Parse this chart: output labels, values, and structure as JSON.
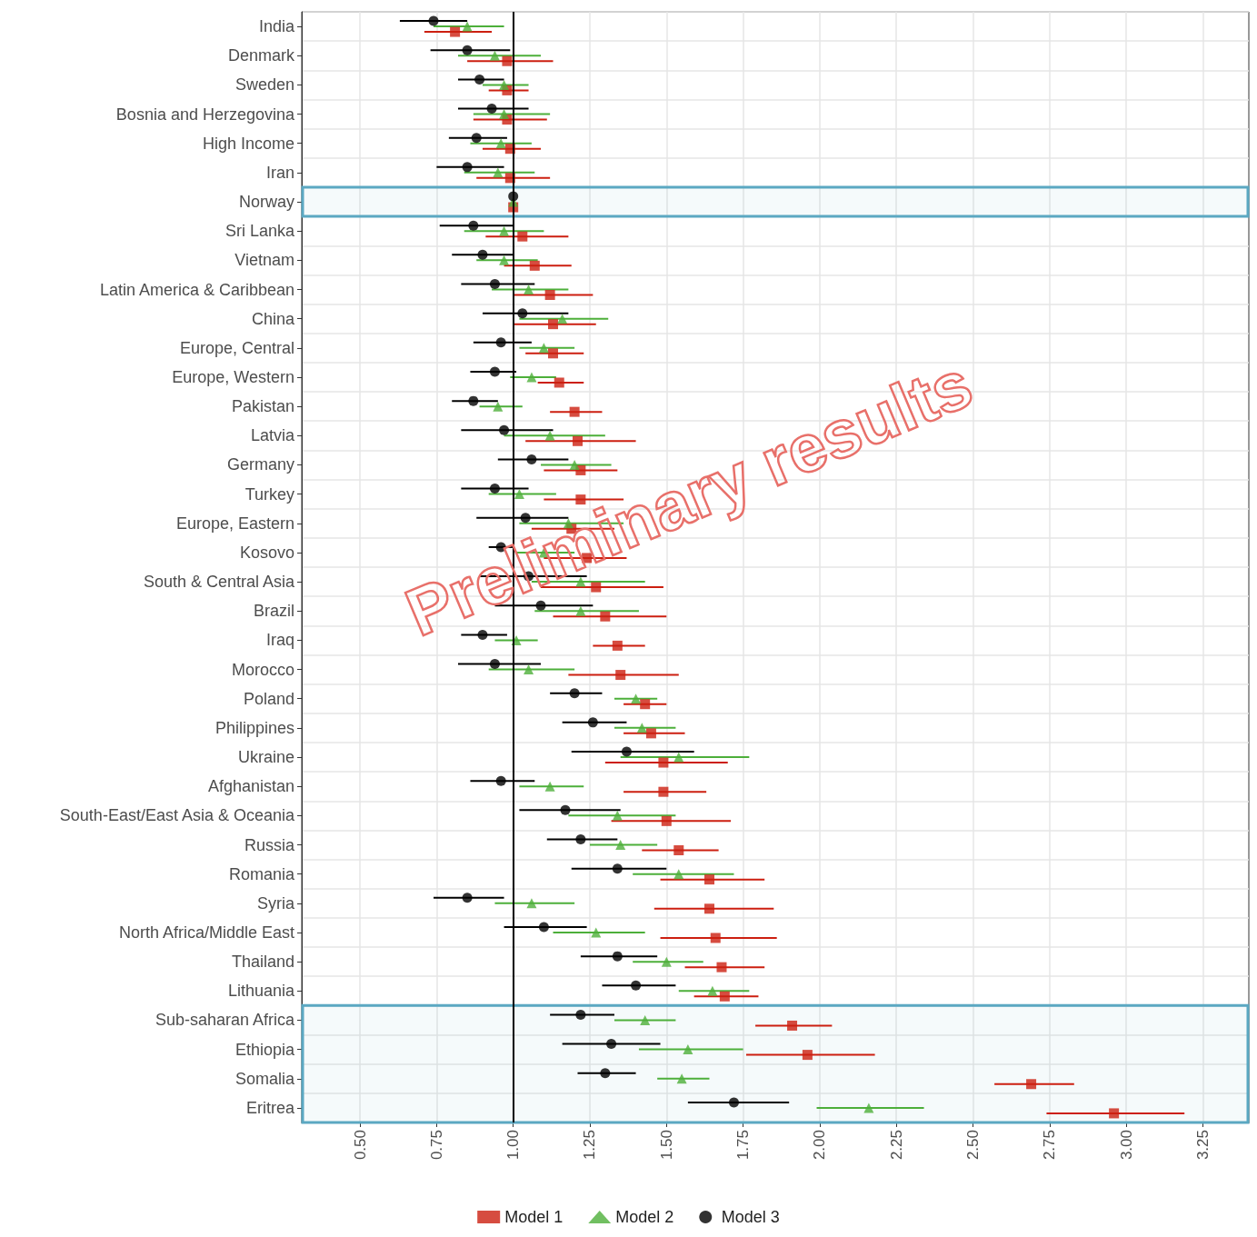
{
  "chart_data": {
    "type": "scatter",
    "orientation": "horizontal",
    "categories": [
      "India",
      "Denmark",
      "Sweden",
      "Bosnia and Herzegovina",
      "High Income",
      "Iran",
      "Norway",
      "Sri Lanka",
      "Vietnam",
      "Latin America & Caribbean",
      "China",
      "Europe, Central",
      "Europe, Western",
      "Pakistan",
      "Latvia",
      "Germany",
      "Turkey",
      "Europe, Eastern",
      "Kosovo",
      "South & Central Asia",
      "Brazil",
      "Iraq",
      "Morocco",
      "Poland",
      "Philippines",
      "Ukraine",
      "Afghanistan",
      "South-East/East Asia & Oceania",
      "Russia",
      "Romania",
      "Syria",
      "North Africa/Middle East",
      "Thailand",
      "Lithuania",
      "Sub-saharan Africa",
      "Ethiopia",
      "Somalia",
      "Eritrea"
    ],
    "series": [
      {
        "name": "Model 1",
        "color": "#cc1f10",
        "marker": "square",
        "values": [
          0.81,
          0.98,
          0.98,
          0.98,
          0.99,
          0.99,
          1.0,
          1.03,
          1.07,
          1.12,
          1.13,
          1.13,
          1.15,
          1.2,
          1.21,
          1.22,
          1.22,
          1.19,
          1.24,
          1.27,
          1.3,
          1.34,
          1.35,
          1.43,
          1.45,
          1.49,
          1.49,
          1.5,
          1.54,
          1.64,
          1.64,
          1.66,
          1.68,
          1.69,
          1.91,
          1.96,
          2.69,
          2.96
        ],
        "errors": [
          [
            0.71,
            0.93
          ],
          [
            0.85,
            1.13
          ],
          [
            0.92,
            1.05
          ],
          [
            0.87,
            1.11
          ],
          [
            0.9,
            1.09
          ],
          [
            0.88,
            1.12
          ],
          null,
          [
            0.91,
            1.18
          ],
          [
            0.97,
            1.19
          ],
          [
            1.0,
            1.26
          ],
          [
            1.0,
            1.27
          ],
          [
            1.04,
            1.23
          ],
          [
            1.08,
            1.23
          ],
          [
            1.12,
            1.29
          ],
          [
            1.04,
            1.4
          ],
          [
            1.1,
            1.34
          ],
          [
            1.1,
            1.36
          ],
          [
            1.06,
            1.33
          ],
          [
            1.1,
            1.37
          ],
          [
            1.09,
            1.49
          ],
          [
            1.13,
            1.5
          ],
          [
            1.26,
            1.43
          ],
          [
            1.18,
            1.54
          ],
          [
            1.36,
            1.5
          ],
          [
            1.36,
            1.56
          ],
          [
            1.3,
            1.7
          ],
          [
            1.36,
            1.63
          ],
          [
            1.32,
            1.71
          ],
          [
            1.42,
            1.67
          ],
          [
            1.48,
            1.82
          ],
          [
            1.46,
            1.85
          ],
          [
            1.48,
            1.86
          ],
          [
            1.56,
            1.82
          ],
          [
            1.59,
            1.8
          ],
          [
            1.79,
            2.04
          ],
          [
            1.76,
            2.18
          ],
          [
            2.57,
            2.83
          ],
          [
            2.74,
            3.19
          ]
        ]
      },
      {
        "name": "Model 2",
        "color": "#4daf3a",
        "marker": "triangle",
        "values": [
          0.85,
          0.94,
          0.97,
          0.97,
          0.96,
          0.95,
          1.0,
          0.97,
          0.97,
          1.05,
          1.16,
          1.1,
          1.06,
          0.95,
          1.12,
          1.2,
          1.02,
          1.18,
          1.1,
          1.22,
          1.22,
          1.01,
          1.05,
          1.4,
          1.42,
          1.54,
          1.12,
          1.34,
          1.35,
          1.54,
          1.06,
          1.27,
          1.5,
          1.65,
          1.43,
          1.57,
          1.55,
          2.16
        ],
        "errors": [
          [
            0.74,
            0.97
          ],
          [
            0.82,
            1.09
          ],
          [
            0.9,
            1.05
          ],
          [
            0.87,
            1.12
          ],
          [
            0.86,
            1.06
          ],
          [
            0.84,
            1.07
          ],
          null,
          [
            0.84,
            1.1
          ],
          [
            0.88,
            1.08
          ],
          [
            0.93,
            1.18
          ],
          [
            1.02,
            1.31
          ],
          [
            1.02,
            1.2
          ],
          [
            0.99,
            1.14
          ],
          [
            0.89,
            1.03
          ],
          [
            0.97,
            1.3
          ],
          [
            1.09,
            1.32
          ],
          [
            0.92,
            1.14
          ],
          [
            1.02,
            1.36
          ],
          [
            1.01,
            1.2
          ],
          [
            1.06,
            1.43
          ],
          [
            1.07,
            1.41
          ],
          [
            0.94,
            1.08
          ],
          [
            0.92,
            1.2
          ],
          [
            1.33,
            1.47
          ],
          [
            1.33,
            1.53
          ],
          [
            1.35,
            1.77
          ],
          [
            1.02,
            1.23
          ],
          [
            1.18,
            1.53
          ],
          [
            1.25,
            1.47
          ],
          [
            1.39,
            1.72
          ],
          [
            0.94,
            1.2
          ],
          [
            1.13,
            1.43
          ],
          [
            1.39,
            1.62
          ],
          [
            1.54,
            1.77
          ],
          [
            1.33,
            1.53
          ],
          [
            1.41,
            1.75
          ],
          [
            1.47,
            1.64
          ],
          [
            1.99,
            2.34
          ]
        ]
      },
      {
        "name": "Model 3",
        "color": "#000000",
        "marker": "circle",
        "values": [
          0.74,
          0.85,
          0.89,
          0.93,
          0.88,
          0.85,
          1.0,
          0.87,
          0.9,
          0.94,
          1.03,
          0.96,
          0.94,
          0.87,
          0.97,
          1.06,
          0.94,
          1.04,
          0.96,
          1.05,
          1.09,
          0.9,
          0.94,
          1.2,
          1.26,
          1.37,
          0.96,
          1.17,
          1.22,
          1.34,
          0.85,
          1.1,
          1.34,
          1.4,
          1.22,
          1.32,
          1.3,
          1.72
        ],
        "errors": [
          [
            0.63,
            0.85
          ],
          [
            0.73,
            0.99
          ],
          [
            0.82,
            0.97
          ],
          [
            0.82,
            1.05
          ],
          [
            0.79,
            0.98
          ],
          [
            0.75,
            0.97
          ],
          null,
          [
            0.76,
            1.0
          ],
          [
            0.8,
            1.0
          ],
          [
            0.83,
            1.07
          ],
          [
            0.9,
            1.18
          ],
          [
            0.87,
            1.06
          ],
          [
            0.86,
            1.01
          ],
          [
            0.8,
            0.95
          ],
          [
            0.83,
            1.13
          ],
          [
            0.95,
            1.18
          ],
          [
            0.83,
            1.05
          ],
          [
            0.88,
            1.18
          ],
          [
            0.92,
            1.0
          ],
          [
            0.89,
            1.24
          ],
          [
            0.94,
            1.26
          ],
          [
            0.83,
            0.98
          ],
          [
            0.82,
            1.09
          ],
          [
            1.12,
            1.29
          ],
          [
            1.16,
            1.37
          ],
          [
            1.19,
            1.59
          ],
          [
            0.86,
            1.07
          ],
          [
            1.02,
            1.35
          ],
          [
            1.11,
            1.34
          ],
          [
            1.19,
            1.5
          ],
          [
            0.74,
            0.97
          ],
          [
            0.97,
            1.24
          ],
          [
            1.22,
            1.47
          ],
          [
            1.29,
            1.53
          ],
          [
            1.12,
            1.33
          ],
          [
            1.16,
            1.48
          ],
          [
            1.21,
            1.4
          ],
          [
            1.57,
            1.9
          ]
        ]
      }
    ],
    "xlim": [
      0.31,
      3.4
    ],
    "xticks": [
      {
        "value": 0.5,
        "label": "0.50"
      },
      0.75,
      {
        "value": 1,
        "label": "1.00"
      },
      1.25,
      {
        "value": 1.5,
        "label": "1.50"
      },
      1.75,
      {
        "value": 2,
        "label": "2.00"
      },
      2.25,
      {
        "value": 2.5,
        "label": "2.50"
      },
      2.75,
      {
        "value": 3,
        "label": "3.00"
      },
      3.25
    ],
    "ref_lines": [
      {
        "axis": "x",
        "value": 1,
        "color": "#000000"
      }
    ],
    "bands": [
      {
        "axis": "y",
        "from": "Norway",
        "to": "Norway",
        "color": "#5ba8c2"
      },
      {
        "axis": "y",
        "from": "Sub-saharan Africa",
        "to": "Eritrea",
        "color": "#5ba8c2"
      }
    ],
    "annotations": [
      "Preliminary results"
    ],
    "grid": true,
    "legend": "bottom"
  }
}
